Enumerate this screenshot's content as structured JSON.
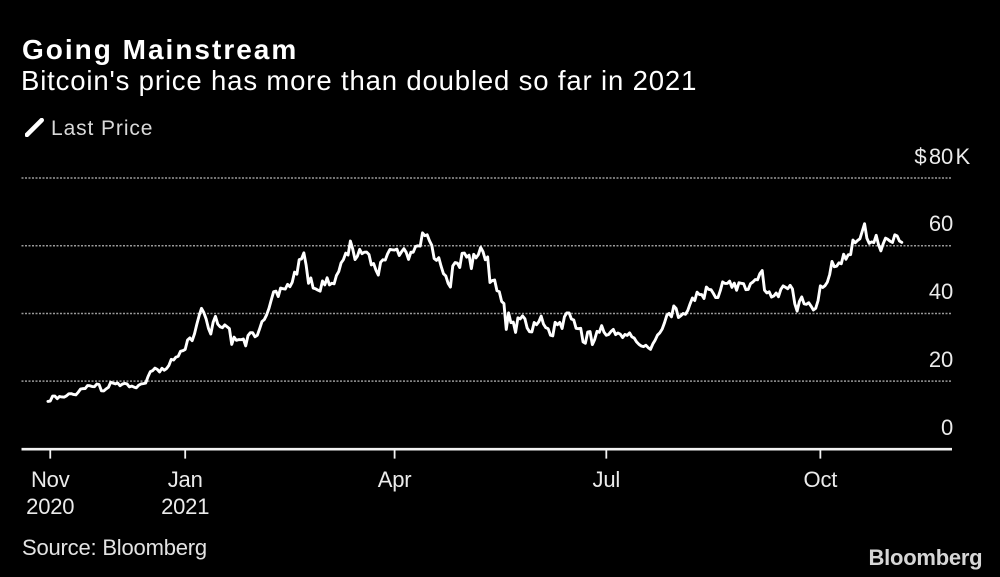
{
  "header": {
    "title": "Going Mainstream",
    "subtitle": "Bitcoin's price has more than doubled so far in 2021"
  },
  "legend": {
    "label": "Last Price",
    "marker": "line-sample-icon"
  },
  "source_note": "Source: Bloomberg",
  "brand_logo": "Bloomberg",
  "colors": {
    "background": "#000000",
    "line": "#ffffff",
    "gridline": "#9a9a9a",
    "axis": "#f2f2f2",
    "tick_label": "#ebebeb",
    "secondary_text": "#d9d9d9"
  },
  "y_axis": {
    "side": "right",
    "range": [
      0,
      80
    ],
    "unit": "thousand US dollars",
    "gridline_style": "dotted",
    "ticks": [
      {
        "value": 80,
        "prefix": "$",
        "label": "80",
        "suffix": "K"
      },
      {
        "value": 60,
        "label": "60"
      },
      {
        "value": 40,
        "label": "40"
      },
      {
        "value": 20,
        "label": "20"
      },
      {
        "value": 0,
        "label": "0"
      }
    ]
  },
  "x_axis": {
    "range": [
      "2020-11-03",
      "2021-11-05"
    ],
    "ticks": [
      {
        "date": "2020-11-04",
        "label_lines": [
          "Nov",
          "2020"
        ]
      },
      {
        "date": "2021-01-01",
        "label_lines": [
          "Jan",
          "2021"
        ]
      },
      {
        "date": "2021-04-01",
        "label_lines": [
          "Apr"
        ]
      },
      {
        "date": "2021-07-01",
        "label_lines": [
          "Jul"
        ]
      },
      {
        "date": "2021-10-01",
        "label_lines": [
          "Oct"
        ]
      }
    ]
  },
  "chart_data": {
    "type": "line",
    "title": "Going Mainstream",
    "subtitle": "Bitcoin's price has more than doubled so far in 2021",
    "xlabel": "",
    "ylabel": "Last Price (thousand USD)",
    "ylim": [
      0,
      80
    ],
    "grid": "horizontal-dotted",
    "legend_position": "top-left",
    "background": "black",
    "series": [
      {
        "name": "Last Price",
        "unit": "USD thousands",
        "frequency": "daily",
        "start_date": "2020-11-03",
        "end_date": "2021-11-05",
        "values": [
          14.02,
          14.14,
          15.6,
          15.59,
          14.83,
          15.48,
          15.33,
          15.29,
          15.68,
          16.28,
          16.32,
          16.07,
          15.96,
          16.72,
          17.66,
          17.8,
          17.82,
          18.7,
          18.66,
          18.42,
          18.37,
          19.16,
          19,
          17.15,
          17.11,
          17.72,
          18.18,
          19.7,
          19.43,
          19.2,
          19.45,
          18.65,
          19.15,
          19.35,
          19.19,
          18.32,
          18.55,
          18.26,
          18.04,
          18.8,
          19.17,
          19.28,
          19.43,
          21.31,
          22.81,
          23.12,
          23.86,
          23.48,
          22.72,
          23.82,
          23.24,
          23.73,
          24.67,
          26.44,
          26.25,
          27.08,
          27.36,
          28.84,
          29,
          29.37,
          32.13,
          32.78,
          31.97,
          33.99,
          36.82,
          39.37,
          41.5,
          40.25,
          38.35,
          35.57,
          33.92,
          37.39,
          39.15,
          36.83,
          36.08,
          35.79,
          36.63,
          36.07,
          35.51,
          30.85,
          33.01,
          32.07,
          32.29,
          32.25,
          32.47,
          30.43,
          33.47,
          34.32,
          34.31,
          33.11,
          33.54,
          35.5,
          37.6,
          38.2,
          39.6,
          41.5,
          44,
          46.4,
          46.6,
          45,
          47.5,
          47.3,
          47.2,
          48.6,
          47.9,
          49.2,
          52.2,
          51.6,
          55.9,
          56.1,
          57.9,
          54.2,
          48.9,
          50.5,
          47.5,
          47.3,
          46.9,
          46.6,
          49.6,
          48.45,
          50.54,
          48.44,
          48.92,
          48.75,
          51.21,
          52.38,
          54.92,
          55.89,
          57.81,
          57.25,
          61.4,
          59.02,
          55.91,
          56.9,
          58.92,
          57.65,
          58.09,
          58.12,
          57.41,
          54.34,
          54.74,
          52.77,
          51.33,
          55.14,
          55.86,
          55.78,
          57.63,
          58.92,
          58.8,
          58.73,
          58.99,
          57.11,
          58.21,
          59.13,
          58.02,
          55.96,
          58.08,
          58.08,
          59.77,
          59.98,
          59.89,
          63.8,
          62.97,
          63.23,
          61.45,
          60.09,
          56.22,
          55.68,
          56.47,
          53.91,
          51.73,
          51.09,
          48.9,
          47.8,
          54.03,
          55.03,
          54.85,
          53.57,
          57.75,
          57.83,
          56.63,
          57.2,
          53.24,
          57.47,
          56.4,
          57.35,
          59.5,
          58.25,
          55.85,
          56.7,
          49.15,
          49.72,
          49.88,
          46.72,
          46.43,
          43.54,
          42.91,
          35.3,
          40.2,
          37.28,
          37.45,
          34.4,
          38.71,
          38.4,
          39.29,
          38.44,
          35.68,
          34.62,
          34.54,
          37.33,
          36.68,
          37.57,
          39.21,
          36.85,
          35.8,
          35.5,
          33.57,
          33.39,
          37.39,
          36.68,
          37.34,
          35.55,
          39.02,
          40.16,
          40.16,
          38.35,
          38.09,
          35.62,
          35.49,
          35.6,
          31.62,
          31.2,
          34.5,
          34.66,
          30.8,
          32.3,
          34.7,
          34.43,
          36.4,
          34.5,
          33.57,
          33.8,
          34.67,
          35.29,
          33.75,
          34.23,
          33.88,
          32.88,
          33.8,
          33.52,
          34.26,
          33.08,
          32.73,
          31.6,
          30.9,
          30.4,
          30.2,
          30.6,
          29.9,
          29.4,
          31,
          32.14,
          33.62,
          34.29,
          35.38,
          37.24,
          39.46,
          40.02,
          39,
          42.21,
          41.46,
          38.8,
          39.3,
          40,
          39.75,
          40.88,
          42.82,
          44.57,
          43.8,
          46.28,
          45.6,
          45.56,
          44.42,
          47.79,
          47.1,
          47.02,
          45.93,
          44.69,
          44.7,
          46.76,
          49.32,
          48.86,
          48.87,
          49.53,
          47.71,
          48.97,
          46.84,
          49.07,
          48.91,
          48.8,
          47.01,
          47.1,
          48.81,
          49.29,
          50,
          49.94,
          51.75,
          52.67,
          46.86,
          46.06,
          46.4,
          44.84,
          45.16,
          46.03,
          44.94,
          47.09,
          48.13,
          47.74,
          47.31,
          48.3,
          47.26,
          42.9,
          40.69,
          43.57,
          44.88,
          42.84,
          42.7,
          43.17,
          42.16,
          41.03,
          41.52,
          43.79,
          48.17,
          47.66,
          48.2,
          49.25,
          51.51,
          55.36,
          53.8,
          53.96,
          54.95,
          54.69,
          57.48,
          56,
          57.37,
          57.35,
          61.67,
          60.89,
          61.55,
          62.03,
          64.28,
          66.5,
          62.21,
          60.69,
          61.13,
          60.93,
          63.08,
          60.28,
          58.47,
          60.58,
          62.25,
          61.89,
          61.32,
          60.95,
          63.23,
          62.9,
          61.4,
          61
        ]
      }
    ]
  }
}
